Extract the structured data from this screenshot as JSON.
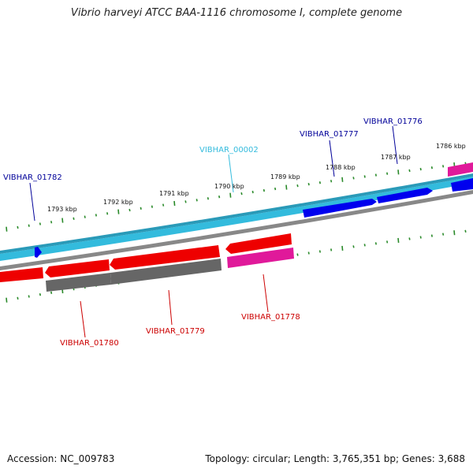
{
  "title": "Vibrio harveyi ATCC BAA-1116 chromosome I, complete genome",
  "accession": "Accession: NC_009783",
  "summary": "Topology: circular; Length: 3,765,351 bp; Genes: 3,688",
  "colors": {
    "forward_cds": "#0000ee",
    "forward_track": "#33bbdd",
    "reverse_cds": "#ee0000",
    "reverse_gray": "#666666",
    "pink": "#e0199a",
    "ticks": "#2a8a2a",
    "label_blue": "#000099",
    "label_cyan": "#33bbdd",
    "label_red": "#cc0000"
  },
  "ticks": [
    {
      "label": "1793 kbp"
    },
    {
      "label": "1792 kbp"
    },
    {
      "label": "1791 kbp"
    },
    {
      "label": "1790 kbp"
    },
    {
      "label": "1789 kbp"
    },
    {
      "label": "1788 kbp"
    },
    {
      "label": "1787 kbp"
    },
    {
      "label": "1786 kbp"
    }
  ],
  "gene_labels": [
    {
      "text": "VIBHAR_01782",
      "color": "#000099"
    },
    {
      "text": "VIBHAR_00002",
      "color": "#33bbdd"
    },
    {
      "text": "VIBHAR_01777",
      "color": "#000099"
    },
    {
      "text": "VIBHAR_01776",
      "color": "#000099"
    },
    {
      "text": "VIBHAR_01780",
      "color": "#cc0000"
    },
    {
      "text": "VIBHAR_01779",
      "color": "#cc0000"
    },
    {
      "text": "VIBHAR_01778",
      "color": "#cc0000"
    }
  ]
}
